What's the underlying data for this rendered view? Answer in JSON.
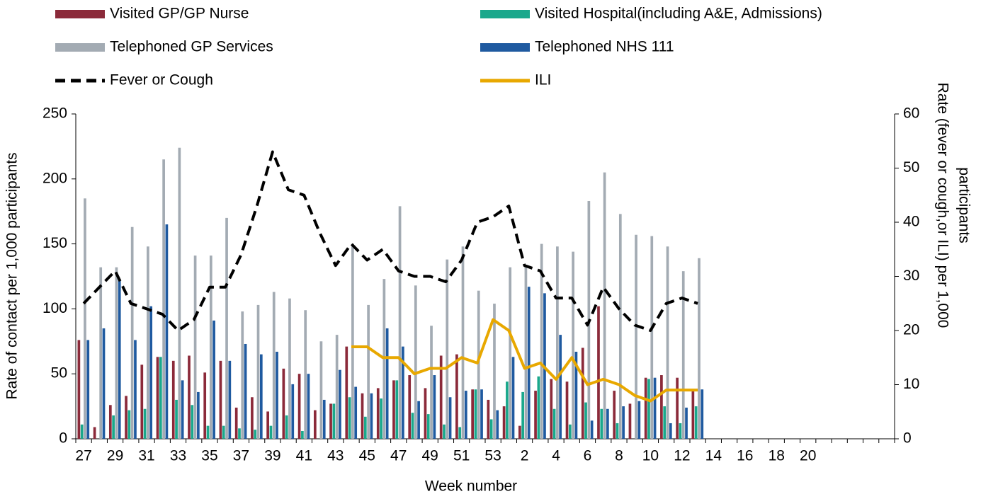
{
  "chart_data": {
    "type": "bar",
    "categories": [
      "27",
      null,
      "29",
      null,
      "31",
      null,
      "33",
      null,
      "35",
      null,
      "37",
      null,
      "39",
      null,
      "41",
      null,
      "43",
      null,
      "45",
      null,
      "47",
      null,
      "49",
      null,
      "51",
      null,
      "53",
      null,
      "2",
      null,
      "4",
      null,
      "6",
      null,
      "8",
      null,
      "10",
      null,
      "12",
      null,
      "14",
      null,
      "16",
      null,
      "18",
      null,
      "20",
      null,
      null,
      null,
      null,
      null
    ],
    "x_label": "Week number",
    "y_label": "Rate of contact per 1,000 participants",
    "y2_label": [
      "Rate (fever or cough,or ILI) per 1,000",
      "participants"
    ],
    "ylim": [
      0,
      250
    ],
    "yticks": [
      0,
      50,
      100,
      150,
      200,
      250
    ],
    "y2lim": [
      0,
      60
    ],
    "y2ticks": [
      0,
      10,
      20,
      30,
      40,
      50,
      60
    ],
    "series": [
      {
        "name": "Visited GP/GP Nurse",
        "color": "#8b2a3a",
        "type": "bar",
        "values": [
          76,
          9,
          26,
          33,
          57,
          63,
          60,
          64,
          51,
          60,
          24,
          32,
          21,
          54,
          50,
          22,
          27,
          71,
          35,
          39,
          45,
          49,
          39,
          64,
          65,
          38,
          30,
          25,
          10,
          37,
          46,
          44,
          70,
          102,
          37,
          27,
          47,
          49,
          47,
          38,
          null,
          null,
          null,
          null,
          null,
          null,
          null,
          null,
          null,
          null,
          null,
          null
        ]
      },
      {
        "name": "Visited Hospital(including A&E, Admissions)",
        "color": "#1aa88c",
        "type": "bar",
        "values": [
          11,
          0,
          18,
          22,
          23,
          63,
          30,
          26,
          10,
          10,
          8,
          7,
          10,
          18,
          6,
          0,
          27,
          32,
          17,
          31,
          45,
          20,
          19,
          11,
          9,
          38,
          15,
          44,
          36,
          48,
          23,
          11,
          28,
          23,
          12,
          0,
          46,
          25,
          12,
          25,
          null,
          null,
          null,
          null,
          null,
          null,
          null,
          null,
          null,
          null,
          null,
          null
        ]
      },
      {
        "name": "Telephoned GP Services",
        "color": "#a3abb3",
        "type": "bar",
        "values": [
          185,
          132,
          132,
          163,
          148,
          215,
          224,
          141,
          141,
          170,
          98,
          103,
          113,
          108,
          99,
          75,
          80,
          150,
          103,
          123,
          179,
          118,
          87,
          138,
          148,
          114,
          104,
          132,
          133,
          150,
          148,
          144,
          183,
          205,
          173,
          157,
          156,
          148,
          129,
          139,
          null,
          null,
          null,
          null,
          null,
          null,
          null,
          null,
          null,
          null,
          null,
          null
        ]
      },
      {
        "name": "Telephoned NHS 111",
        "color": "#1f5aa0",
        "type": "bar",
        "values": [
          76,
          85,
          122,
          76,
          102,
          165,
          45,
          36,
          91,
          60,
          73,
          65,
          67,
          42,
          50,
          30,
          53,
          40,
          35,
          85,
          71,
          29,
          49,
          32,
          37,
          38,
          22,
          63,
          117,
          112,
          80,
          67,
          14,
          23,
          25,
          29,
          47,
          12,
          24,
          38,
          null,
          null,
          null,
          null,
          null,
          null,
          null,
          null,
          null,
          null,
          null,
          null
        ]
      },
      {
        "name": "Fever or Cough",
        "color": "#000000",
        "type": "line",
        "dashed": true,
        "axis": "y2",
        "values": [
          25,
          28,
          31,
          25,
          24,
          23,
          20,
          22,
          28,
          28,
          34,
          43,
          53,
          46,
          45,
          38,
          32,
          36,
          33,
          35,
          31,
          30,
          30,
          29,
          33,
          40,
          41,
          43,
          32,
          31,
          26,
          26,
          21,
          28,
          24,
          21,
          20,
          25,
          26,
          25,
          null,
          null,
          null,
          null,
          null,
          null,
          null,
          null,
          null,
          null,
          null,
          null
        ]
      },
      {
        "name": "ILI",
        "color": "#e8a800",
        "type": "line",
        "dashed": false,
        "axis": "y2",
        "values": [
          null,
          null,
          null,
          null,
          null,
          null,
          null,
          null,
          null,
          null,
          null,
          null,
          null,
          null,
          null,
          null,
          null,
          17,
          17,
          15,
          15,
          12,
          13,
          13,
          15,
          14,
          22,
          20,
          13,
          14,
          11,
          15,
          10,
          11,
          10,
          8,
          7,
          9,
          9,
          9,
          null,
          null,
          null,
          null,
          null,
          null,
          null,
          null,
          null,
          null,
          null,
          null
        ]
      }
    ]
  }
}
